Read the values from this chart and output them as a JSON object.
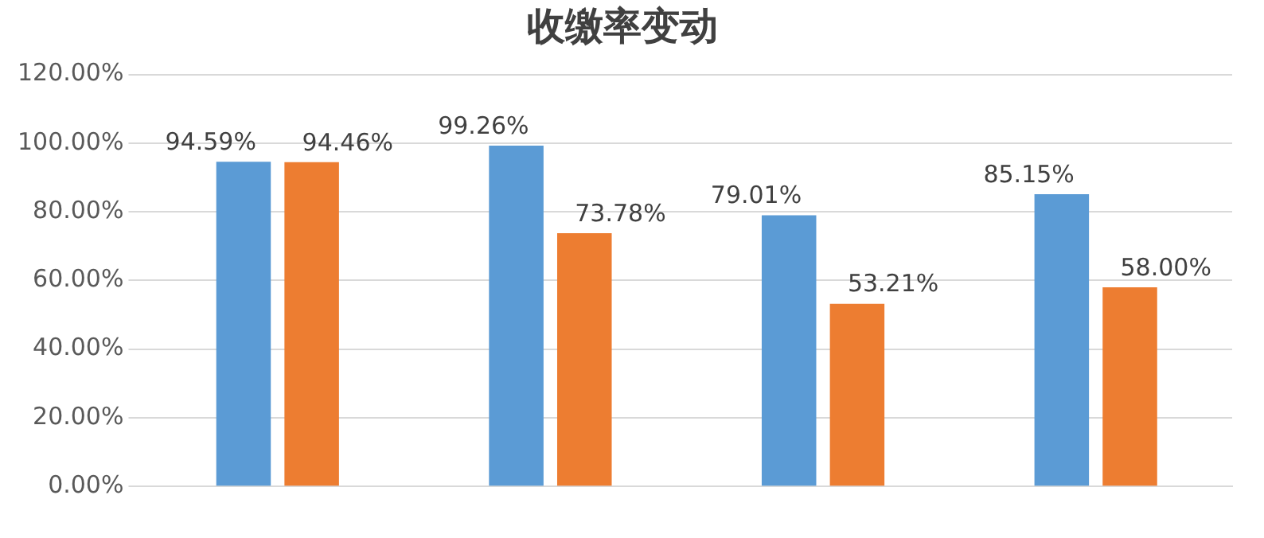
{
  "chart_data": {
    "type": "bar",
    "title": "收缴率变动",
    "categories": [
      null,
      null,
      null,
      null
    ],
    "series": [
      {
        "color": "#5b9bd5",
        "values": [
          94.59,
          99.26,
          79.01,
          85.15
        ],
        "value_labels": [
          "94.59%",
          "99.26%",
          "79.01%",
          "85.15%"
        ]
      },
      {
        "color": "#ed7d31",
        "values": [
          94.46,
          73.78,
          53.21,
          58.0
        ],
        "value_labels": [
          "94.46%",
          "73.78%",
          "53.21%",
          "58.00%"
        ]
      }
    ],
    "ylim": [
      0,
      120
    ],
    "yticks": [
      {
        "value": 0,
        "label": "0.00%"
      },
      {
        "value": 20,
        "label": "20.00%"
      },
      {
        "value": 40,
        "label": "40.00%"
      },
      {
        "value": 60,
        "label": "60.00%"
      },
      {
        "value": 80,
        "label": "80.00%"
      },
      {
        "value": 100,
        "label": "100.00%"
      },
      {
        "value": 120,
        "label": "120.00%"
      }
    ],
    "grid": "y"
  }
}
